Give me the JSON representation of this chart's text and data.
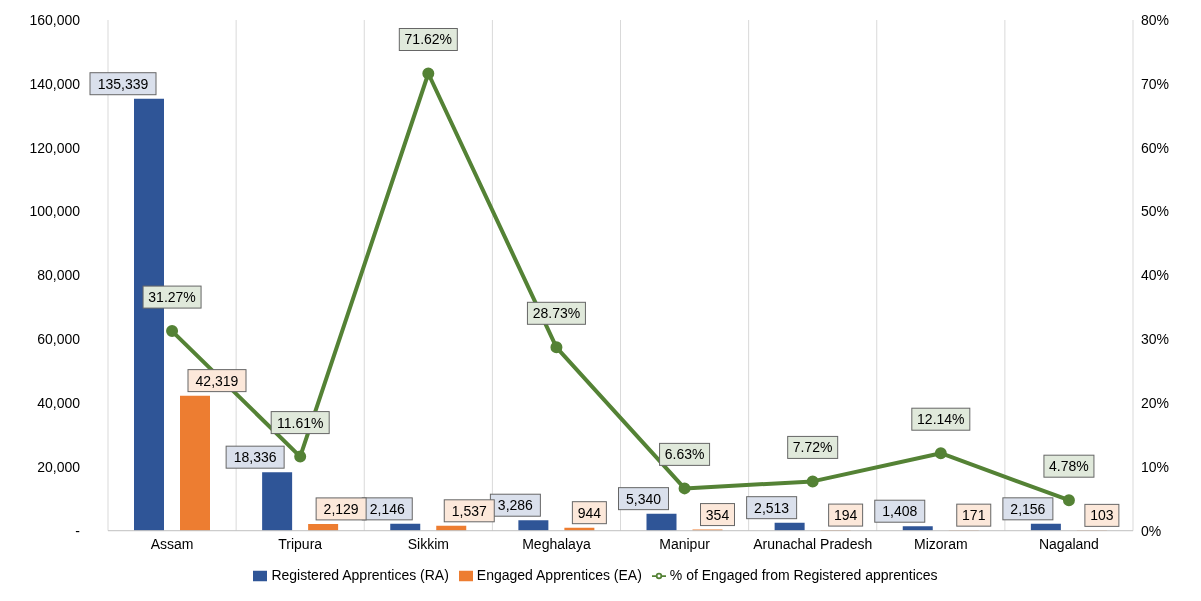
{
  "chart_data": {
    "type": "bar",
    "categories": [
      "Assam",
      "Tripura",
      "Sikkim",
      "Meghalaya",
      "Manipur",
      "Arunachal Pradesh",
      "Mizoram",
      "Nagaland"
    ],
    "series": [
      {
        "name": "Registered Apprentices (RA)",
        "type": "bar",
        "color": "#2f5597",
        "values": [
          135339,
          18336,
          2146,
          3286,
          5340,
          2513,
          1408,
          2156
        ],
        "value_labels": [
          "135,339",
          "18,336",
          "2,146",
          "3,286",
          "5,340",
          "2,513",
          "1,408",
          "2,156"
        ]
      },
      {
        "name": "Engaged Apprentices (EA)",
        "type": "bar",
        "color": "#ed7d31",
        "values": [
          42319,
          2129,
          1537,
          944,
          354,
          194,
          171,
          103
        ],
        "value_labels": [
          "42,319",
          "2,129",
          "1,537",
          "944",
          "354",
          "194",
          "171",
          "103"
        ]
      },
      {
        "name": "% of Engaged from Registered apprentices",
        "type": "line",
        "axis": "y2",
        "color": "#548235",
        "marker": "circle",
        "values": [
          31.27,
          11.61,
          71.62,
          28.73,
          6.63,
          7.72,
          12.14,
          4.78
        ],
        "value_labels": [
          "31.27%",
          "11.61%",
          "71.62%",
          "28.73%",
          "6.63%",
          "7.72%",
          "12.14%",
          "4.78%"
        ]
      }
    ],
    "ylim": [
      0,
      160000
    ],
    "yticks": [
      {
        "value": 0,
        "label": "-"
      },
      {
        "value": 20000,
        "label": "20,000"
      },
      {
        "value": 40000,
        "label": "40,000"
      },
      {
        "value": 60000,
        "label": "60,000"
      },
      {
        "value": 80000,
        "label": "80,000"
      },
      {
        "value": 100000,
        "label": "100,000"
      },
      {
        "value": 120000,
        "label": "120,000"
      },
      {
        "value": 140000,
        "label": "140,000"
      },
      {
        "value": 160000,
        "label": "160,000"
      }
    ],
    "y2lim": [
      0,
      80
    ],
    "y2ticks": [
      {
        "value": 0,
        "label": "0%"
      },
      {
        "value": 10,
        "label": "10%"
      },
      {
        "value": 20,
        "label": "20%"
      },
      {
        "value": 30,
        "label": "30%"
      },
      {
        "value": 40,
        "label": "40%"
      },
      {
        "value": 50,
        "label": "50%"
      },
      {
        "value": 60,
        "label": "60%"
      },
      {
        "value": 70,
        "label": "70%"
      },
      {
        "value": 80,
        "label": "80%"
      }
    ],
    "grid": "x",
    "legend": "bottom"
  }
}
